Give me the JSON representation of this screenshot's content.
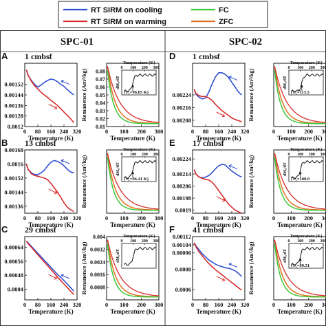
{
  "legend": {
    "entries": [
      {
        "label": "RT SIRM on cooling",
        "color": "#2f4fd1"
      },
      {
        "label": "FC",
        "color": "#3cc83c"
      },
      {
        "label": "RT SIRM on warming",
        "color": "#d62a2a"
      },
      {
        "label": "ZFC",
        "color": "#e0701e"
      }
    ]
  },
  "columns": [
    {
      "title": "SPC-01"
    },
    {
      "title": "SPC-02"
    }
  ],
  "colors": {
    "cooling": "#2f4fd1",
    "warming": "#d62a2a",
    "fc": "#3cc83c",
    "zfc": "#e0701e"
  },
  "labels": {
    "temperature_axis": "Temperature (K)",
    "remanence_axis": "Remanence (Am²/kg)",
    "inset_y": "dM₀/dT",
    "unit_prefix": "(T",
    "unit_suffix": ")"
  },
  "chart_data": [
    {
      "panel": "A",
      "depth": "1 cmbsf",
      "type": "line",
      "chart": "sirm",
      "xlabel": "Temperature (K)",
      "xlim": [
        0,
        320
      ],
      "xticks": [
        0,
        80,
        160,
        240,
        320
      ],
      "ylim": [
        0.0012,
        0.00168
      ],
      "yticks": [
        "0.0012",
        "0.00128",
        "0.00136",
        "0.00144",
        "0.00152"
      ],
      "series": [
        {
          "key": "cooling",
          "x": [
            300,
            280,
            260,
            240,
            220,
            200,
            180,
            160,
            140,
            120,
            100,
            80,
            60,
            40,
            20,
            10
          ],
          "y": [
            0.00144,
            0.00146,
            0.00148,
            0.001505,
            0.00152,
            0.00154,
            0.001555,
            0.00156,
            0.00155,
            0.001535,
            0.001515,
            0.0015,
            0.00152,
            0.00155,
            0.00159,
            0.00163
          ]
        },
        {
          "key": "warming",
          "x": [
            10,
            20,
            40,
            60,
            80,
            100,
            120,
            140,
            160,
            180,
            200,
            220,
            240,
            260,
            280,
            300
          ],
          "y": [
            0.00163,
            0.00159,
            0.001545,
            0.00151,
            0.001485,
            0.00146,
            0.00144,
            0.00142,
            0.0014,
            0.00138,
            0.00136,
            0.001335,
            0.00131,
            0.001285,
            0.00126,
            0.00123
          ]
        }
      ]
    },
    {
      "panel": "A-rem",
      "type": "line",
      "chart": "remanence",
      "xlabel": "Temperature (K)",
      "xlim": [
        0,
        300
      ],
      "xticks": [
        0,
        100,
        200,
        300
      ],
      "ylim": [
        0.01,
        0.09
      ],
      "yticks": [
        "0.01",
        "0.02",
        "0.03",
        "0.04",
        "0.05",
        "0.06",
        "0.07",
        "0.08"
      ],
      "inset": {
        "label": "(T",
        "value": "=96.05 K)",
        "sub": "v",
        "tc": 96,
        "xticks": [
          0,
          100,
          200,
          300
        ]
      }
    },
    {
      "panel": "D",
      "depth": "1 cmbsf",
      "type": "line",
      "chart": "sirm",
      "xlabel": "Temperature (K)",
      "xlim": [
        0,
        320
      ],
      "xticks": [
        0,
        80,
        160,
        240,
        320
      ],
      "ylim": [
        0.00204,
        0.00244
      ],
      "yticks": [
        "0.00208",
        "0.00216",
        "0.00224"
      ],
      "series": [
        {
          "key": "cooling",
          "x": [
            300,
            280,
            260,
            240,
            220,
            200,
            180,
            160,
            140,
            120,
            100,
            80,
            60,
            40,
            20,
            10
          ],
          "y": [
            0.00224,
            0.00226,
            0.00229,
            0.00232,
            0.00235,
            0.00237,
            0.00238,
            0.00238,
            0.002355,
            0.00231,
            0.00226,
            0.00222,
            0.002215,
            0.002225,
            0.002245,
            0.002275
          ]
        },
        {
          "key": "warming",
          "x": [
            10,
            20,
            40,
            60,
            80,
            100,
            120,
            140,
            160,
            180,
            200,
            220,
            240,
            260,
            280,
            300
          ],
          "y": [
            0.002275,
            0.00225,
            0.002235,
            0.00223,
            0.00223,
            0.00222,
            0.002205,
            0.00218,
            0.00216,
            0.00214,
            0.002125,
            0.00211,
            0.002095,
            0.002085,
            0.002078,
            0.00207
          ]
        }
      ]
    },
    {
      "panel": "D-rem",
      "type": "line",
      "chart": "remanence",
      "xlabel": "Temperature (K)",
      "xlim": [
        0,
        300
      ],
      "xticks": [
        0,
        100,
        200,
        300
      ],
      "ylim": [
        0.01,
        0.09
      ],
      "yticks": [],
      "inset": {
        "label": "(T",
        "value": "=113.5",
        "sub": "v",
        "tc": 113,
        "xticks": [
          0,
          100,
          200,
          300
        ]
      }
    },
    {
      "panel": "B",
      "depth": "13 cmbsf",
      "type": "line",
      "chart": "sirm",
      "xlabel": "Temperature (K)",
      "xlim": [
        0,
        320
      ],
      "xticks": [
        0,
        80,
        160,
        240,
        320
      ],
      "ylim": [
        0.00132,
        0.00168
      ],
      "yticks": [
        "0.00136",
        "0.00144",
        "0.00152",
        "0.0016",
        "0.00168"
      ],
      "series": [
        {
          "key": "cooling",
          "x": [
            300,
            280,
            260,
            240,
            220,
            200,
            180,
            160,
            140,
            120,
            100,
            80,
            60,
            40,
            20,
            10
          ],
          "y": [
            0.00155,
            0.001555,
            0.00157,
            0.00159,
            0.001605,
            0.001615,
            0.00162,
            0.00161,
            0.00159,
            0.001565,
            0.00155,
            0.00154,
            0.00154,
            0.00155,
            0.00157,
            0.0016
          ]
        },
        {
          "key": "warming",
          "x": [
            10,
            20,
            40,
            60,
            80,
            100,
            120,
            140,
            160,
            180,
            200,
            220,
            240,
            260,
            280,
            300
          ],
          "y": [
            0.0016,
            0.00157,
            0.001545,
            0.001535,
            0.00153,
            0.001525,
            0.00152,
            0.00151,
            0.00149,
            0.001465,
            0.00144,
            0.00141,
            0.00138,
            0.001355,
            0.00134,
            0.00133
          ]
        }
      ]
    },
    {
      "panel": "B-rem",
      "type": "line",
      "chart": "remanence",
      "xlabel": "Temperature (K)",
      "xlim": [
        0,
        300
      ],
      "xticks": [
        0,
        100,
        200,
        300
      ],
      "ylim": [
        0.01,
        0.09
      ],
      "yticks": [],
      "inset": {
        "label": "(T",
        "value": "=96.41 K)",
        "sub": "v",
        "tc": 96,
        "xticks": [
          0,
          100,
          200,
          300
        ]
      }
    },
    {
      "panel": "E",
      "depth": "17 cmbsf",
      "type": "line",
      "chart": "sirm",
      "xlabel": "Temperature (K)",
      "xlim": [
        0,
        320
      ],
      "xticks": [
        0,
        80,
        160,
        240,
        320
      ],
      "ylim": [
        0.00188,
        0.0023
      ],
      "yticks": [
        "0.0019",
        "0.00198",
        "0.00206",
        "0.00214",
        "0.00224"
      ],
      "series": [
        {
          "key": "cooling",
          "x": [
            300,
            280,
            260,
            240,
            220,
            200,
            180,
            160,
            140,
            120,
            100,
            80,
            60,
            40,
            20,
            10
          ],
          "y": [
            0.00212,
            0.00213,
            0.002145,
            0.00216,
            0.00218,
            0.0022,
            0.002205,
            0.002195,
            0.002175,
            0.00215,
            0.00213,
            0.00212,
            0.002115,
            0.00212,
            0.00214,
            0.00217
          ]
        },
        {
          "key": "warming",
          "x": [
            10,
            20,
            40,
            60,
            80,
            100,
            120,
            140,
            160,
            180,
            200,
            220,
            240,
            260,
            280,
            300
          ],
          "y": [
            0.00217,
            0.00214,
            0.00212,
            0.00211,
            0.002105,
            0.0021,
            0.002085,
            0.00206,
            0.00203,
            0.002,
            0.00197,
            0.00194,
            0.00192,
            0.0019,
            0.00189,
            0.00188
          ]
        }
      ]
    },
    {
      "panel": "E-rem",
      "type": "line",
      "chart": "remanence",
      "xlabel": "Temperature (K)",
      "xlim": [
        0,
        300
      ],
      "xticks": [
        0,
        100,
        200,
        300
      ],
      "ylim": [
        0.01,
        0.09
      ],
      "yticks": [],
      "inset": {
        "label": "(T",
        "value": "=100.0",
        "sub": "v",
        "tc": 100,
        "xticks": [
          0,
          100,
          200,
          300
        ]
      }
    },
    {
      "panel": "C",
      "depth": "29 cmbsf",
      "type": "line",
      "chart": "sirm",
      "xlabel": "Temperature (K)",
      "xlim": [
        0,
        320
      ],
      "xticks": [
        0,
        80,
        160,
        240,
        320
      ],
      "ylim": [
        0.00034,
        0.0007
      ],
      "yticks": [
        "0.0004",
        "0.00048",
        "0.00056",
        "0.00064"
      ],
      "series": [
        {
          "key": "cooling",
          "x": [
            300,
            280,
            260,
            240,
            220,
            200,
            180,
            160,
            140,
            120,
            100,
            80,
            60,
            40,
            20,
            10
          ],
          "y": [
            0.00039,
            0.00041,
            0.00043,
            0.00045,
            0.000468,
            0.000485,
            0.000505,
            0.000525,
            0.000545,
            0.000565,
            0.000585,
            0.000605,
            0.000625,
            0.000645,
            0.000665,
            0.000675
          ]
        },
        {
          "key": "warming",
          "x": [
            10,
            20,
            40,
            60,
            80,
            100,
            120,
            140,
            160,
            180,
            200,
            220,
            240,
            260,
            280,
            300
          ],
          "y": [
            0.000675,
            0.00066,
            0.00064,
            0.000618,
            0.000597,
            0.000575,
            0.000555,
            0.000534,
            0.000513,
            0.000492,
            0.00047,
            0.00045,
            0.00043,
            0.00041,
            0.00039,
            0.00037
          ]
        }
      ]
    },
    {
      "panel": "C-rem",
      "type": "line",
      "chart": "remanence",
      "xlabel": "Temperature (K)",
      "xlim": [
        0,
        300
      ],
      "xticks": [
        0,
        100,
        200,
        300
      ],
      "ylim": [
        0.0,
        0.004
      ],
      "yticks": [
        "0.0008",
        "0.0016",
        "0.0024",
        "0.0032",
        "0.004"
      ],
      "inset": {
        "label": "",
        "value": "",
        "sub": "",
        "tc": 0,
        "xticks": [
          0,
          100,
          200,
          300
        ]
      }
    },
    {
      "panel": "F",
      "depth": "41 cmbsf",
      "type": "line",
      "chart": "sirm",
      "xlabel": "Temperature (K)",
      "xlim": [
        0,
        320
      ],
      "xticks": [
        0,
        80,
        160,
        240,
        320
      ],
      "ylim": [
        0.0005,
        0.00112
      ],
      "yticks": [
        "0.0006",
        "0.0008",
        "0.00096",
        "0.00104",
        "0.00112"
      ],
      "series": [
        {
          "key": "cooling",
          "x": [
            300,
            280,
            260,
            240,
            220,
            200,
            180,
            160,
            140,
            120,
            100,
            80,
            60,
            40,
            20,
            10
          ],
          "y": [
            0.00073,
            0.00076,
            0.000785,
            0.0008,
            0.00081,
            0.000815,
            0.000825,
            0.000835,
            0.00085,
            0.00087,
            0.00089,
            0.00092,
            0.00095,
            0.00099,
            0.00103,
            0.00106
          ]
        },
        {
          "key": "warming",
          "x": [
            10,
            20,
            40,
            60,
            80,
            100,
            120,
            140,
            160,
            180,
            200,
            220,
            240,
            260,
            280,
            300
          ],
          "y": [
            0.00106,
            0.00102,
            0.00097,
            0.00093,
            0.00089,
            0.000855,
            0.000825,
            0.000795,
            0.00077,
            0.000745,
            0.00072,
            0.000695,
            0.00067,
            0.000645,
            0.00062,
            0.000595
          ]
        }
      ]
    },
    {
      "panel": "F-rem",
      "type": "line",
      "chart": "remanence",
      "xlabel": "Temperature (K)",
      "xlim": [
        0,
        300
      ],
      "xticks": [
        0,
        100,
        200,
        300
      ],
      "ylim": [
        0.01,
        0.09
      ],
      "yticks": [],
      "inset": {
        "label": "(T",
        "value": "=99.51",
        "sub": "v",
        "tc": 100,
        "xticks": [
          0,
          100,
          200,
          300
        ]
      }
    }
  ]
}
